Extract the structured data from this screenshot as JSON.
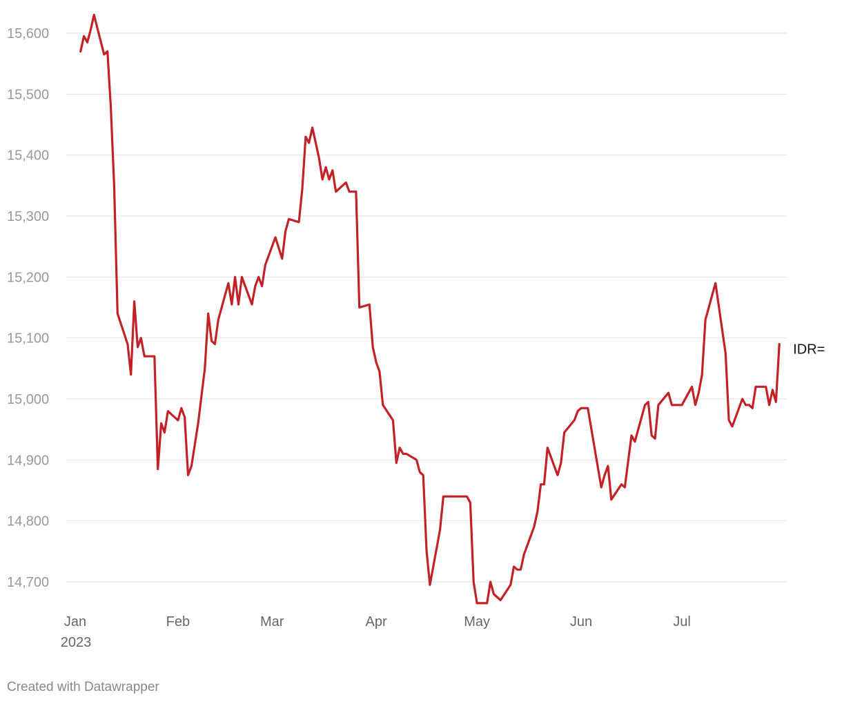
{
  "chart_data": {
    "type": "line",
    "title": "",
    "xlabel": "",
    "ylabel": "",
    "ylim": [
      14665,
      15630
    ],
    "y_ticks": [
      15600,
      15500,
      15400,
      15300,
      15200,
      15100,
      15000,
      14900,
      14800,
      14700
    ],
    "y_tick_labels": [
      "15,600",
      "15,500",
      "15,400",
      "15,300",
      "15,200",
      "15,100",
      "15,000",
      "14,900",
      "14,800",
      "14,700"
    ],
    "x_ticks": [
      {
        "date": "2023-01-01",
        "label": "Jan",
        "sublabel": "2023"
      },
      {
        "date": "2023-02-01",
        "label": "Feb",
        "sublabel": ""
      },
      {
        "date": "2023-03-01",
        "label": "Mar",
        "sublabel": ""
      },
      {
        "date": "2023-04-01",
        "label": "Apr",
        "sublabel": ""
      },
      {
        "date": "2023-05-01",
        "label": "May",
        "sublabel": ""
      },
      {
        "date": "2023-06-01",
        "label": "Jun",
        "sublabel": ""
      },
      {
        "date": "2023-07-01",
        "label": "Jul",
        "sublabel": ""
      }
    ],
    "grid": true,
    "colors": {
      "line": "#c42126",
      "grid": "#e2e2e2",
      "ytick": "#999999",
      "xtick": "#666666"
    },
    "series": [
      {
        "name": "IDR=",
        "points": [
          [
            "2023-01-03",
            15570
          ],
          [
            "2023-01-04",
            15595
          ],
          [
            "2023-01-05",
            15585
          ],
          [
            "2023-01-06",
            15605
          ],
          [
            "2023-01-07",
            15630
          ],
          [
            "2023-01-10",
            15565
          ],
          [
            "2023-01-11",
            15570
          ],
          [
            "2023-01-12",
            15480
          ],
          [
            "2023-01-13",
            15350
          ],
          [
            "2023-01-14",
            15140
          ],
          [
            "2023-01-17",
            15090
          ],
          [
            "2023-01-18",
            15040
          ],
          [
            "2023-01-19",
            15160
          ],
          [
            "2023-01-20",
            15085
          ],
          [
            "2023-01-21",
            15100
          ],
          [
            "2023-01-22",
            15070
          ],
          [
            "2023-01-24",
            15070
          ],
          [
            "2023-01-25",
            15070
          ],
          [
            "2023-01-26",
            14885
          ],
          [
            "2023-01-27",
            14960
          ],
          [
            "2023-01-28",
            14945
          ],
          [
            "2023-01-29",
            14980
          ],
          [
            "2023-01-31",
            14970
          ],
          [
            "2023-02-01",
            14965
          ],
          [
            "2023-02-02",
            14985
          ],
          [
            "2023-02-03",
            14970
          ],
          [
            "2023-02-04",
            14875
          ],
          [
            "2023-02-05",
            14890
          ],
          [
            "2023-02-07",
            14960
          ],
          [
            "2023-02-09",
            15050
          ],
          [
            "2023-02-10",
            15140
          ],
          [
            "2023-02-11",
            15095
          ],
          [
            "2023-02-12",
            15090
          ],
          [
            "2023-02-13",
            15130
          ],
          [
            "2023-02-16",
            15190
          ],
          [
            "2023-02-17",
            15155
          ],
          [
            "2023-02-18",
            15200
          ],
          [
            "2023-02-19",
            15155
          ],
          [
            "2023-02-20",
            15200
          ],
          [
            "2023-02-23",
            15155
          ],
          [
            "2023-02-24",
            15185
          ],
          [
            "2023-02-25",
            15200
          ],
          [
            "2023-02-26",
            15185
          ],
          [
            "2023-02-27",
            15220
          ],
          [
            "2023-03-02",
            15265
          ],
          [
            "2023-03-04",
            15230
          ],
          [
            "2023-03-05",
            15275
          ],
          [
            "2023-03-06",
            15295
          ],
          [
            "2023-03-09",
            15290
          ],
          [
            "2023-03-10",
            15345
          ],
          [
            "2023-03-11",
            15430
          ],
          [
            "2023-03-12",
            15420
          ],
          [
            "2023-03-13",
            15445
          ],
          [
            "2023-03-15",
            15395
          ],
          [
            "2023-03-16",
            15360
          ],
          [
            "2023-03-17",
            15380
          ],
          [
            "2023-03-18",
            15360
          ],
          [
            "2023-03-19",
            15375
          ],
          [
            "2023-03-20",
            15340
          ],
          [
            "2023-03-23",
            15355
          ],
          [
            "2023-03-24",
            15340
          ],
          [
            "2023-03-26",
            15340
          ],
          [
            "2023-03-27",
            15150
          ],
          [
            "2023-03-30",
            15155
          ],
          [
            "2023-03-31",
            15085
          ],
          [
            "2023-04-01",
            15060
          ],
          [
            "2023-04-02",
            15045
          ],
          [
            "2023-04-03",
            14990
          ],
          [
            "2023-04-06",
            14965
          ],
          [
            "2023-04-07",
            14895
          ],
          [
            "2023-04-08",
            14920
          ],
          [
            "2023-04-09",
            14910
          ],
          [
            "2023-04-10",
            14910
          ],
          [
            "2023-04-13",
            14900
          ],
          [
            "2023-04-14",
            14880
          ],
          [
            "2023-04-15",
            14875
          ],
          [
            "2023-04-16",
            14750
          ],
          [
            "2023-04-17",
            14695
          ],
          [
            "2023-04-20",
            14785
          ],
          [
            "2023-04-21",
            14840
          ],
          [
            "2023-04-28",
            14840
          ],
          [
            "2023-04-29",
            14830
          ],
          [
            "2023-04-30",
            14700
          ],
          [
            "2023-05-01",
            14665
          ],
          [
            "2023-05-04",
            14665
          ],
          [
            "2023-05-05",
            14700
          ],
          [
            "2023-05-06",
            14680
          ],
          [
            "2023-05-08",
            14670
          ],
          [
            "2023-05-11",
            14695
          ],
          [
            "2023-05-12",
            14725
          ],
          [
            "2023-05-13",
            14720
          ],
          [
            "2023-05-14",
            14720
          ],
          [
            "2023-05-15",
            14745
          ],
          [
            "2023-05-18",
            14790
          ],
          [
            "2023-05-19",
            14815
          ],
          [
            "2023-05-20",
            14860
          ],
          [
            "2023-05-21",
            14860
          ],
          [
            "2023-05-22",
            14920
          ],
          [
            "2023-05-25",
            14875
          ],
          [
            "2023-05-26",
            14895
          ],
          [
            "2023-05-27",
            14945
          ],
          [
            "2023-05-30",
            14965
          ],
          [
            "2023-05-31",
            14980
          ],
          [
            "2023-06-01",
            14985
          ],
          [
            "2023-06-03",
            14985
          ],
          [
            "2023-06-07",
            14855
          ],
          [
            "2023-06-08",
            14875
          ],
          [
            "2023-06-09",
            14890
          ],
          [
            "2023-06-10",
            14835
          ],
          [
            "2023-06-13",
            14860
          ],
          [
            "2023-06-14",
            14855
          ],
          [
            "2023-06-16",
            14940
          ],
          [
            "2023-06-17",
            14930
          ],
          [
            "2023-06-20",
            14990
          ],
          [
            "2023-06-21",
            14995
          ],
          [
            "2023-06-22",
            14940
          ],
          [
            "2023-06-23",
            14935
          ],
          [
            "2023-06-24",
            14990
          ],
          [
            "2023-06-27",
            15010
          ],
          [
            "2023-06-28",
            14990
          ],
          [
            "2023-07-01",
            14990
          ],
          [
            "2023-07-04",
            15020
          ],
          [
            "2023-07-05",
            14990
          ],
          [
            "2023-07-06",
            15010
          ],
          [
            "2023-07-07",
            15040
          ],
          [
            "2023-07-08",
            15130
          ],
          [
            "2023-07-11",
            15190
          ],
          [
            "2023-07-14",
            15075
          ],
          [
            "2023-07-15",
            14965
          ],
          [
            "2023-07-16",
            14955
          ],
          [
            "2023-07-19",
            15000
          ],
          [
            "2023-07-20",
            14990
          ],
          [
            "2023-07-21",
            14990
          ],
          [
            "2023-07-22",
            14985
          ],
          [
            "2023-07-23",
            15020
          ],
          [
            "2023-07-26",
            15020
          ],
          [
            "2023-07-27",
            14990
          ],
          [
            "2023-07-28",
            15015
          ],
          [
            "2023-07-29",
            14995
          ],
          [
            "2023-07-30",
            15090
          ]
        ]
      }
    ]
  },
  "footer": {
    "credit": "Created with Datawrapper"
  }
}
